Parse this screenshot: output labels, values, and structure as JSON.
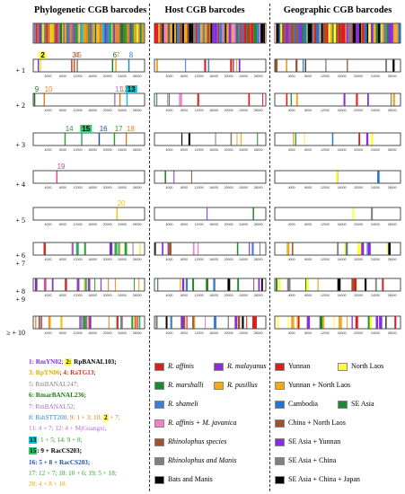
{
  "titles": [
    "Phylogenetic CGB barcodes",
    "Host CGB barcodes",
    "Geographic CGB barcodes"
  ],
  "row_labels": [
    "+ 1",
    "+ 2",
    "+ 3",
    "+ 4",
    "+ 5",
    "+ 6\n+ 7",
    "+ 8\n+ 9",
    "≥ + 10"
  ],
  "ticks": [
    "4000",
    "8000",
    "12000",
    "16000",
    "20000",
    "24000",
    "28000"
  ],
  "tick_values": [
    4000,
    8000,
    12000,
    16000,
    20000,
    24000,
    28000
  ],
  "genome_max": 30000,
  "colors": {
    "phylo": [
      "#7b2fbe",
      "#f1e52a",
      "#d4ac0d",
      "#c0392b",
      "#7f7f7f",
      "#1a7d1a",
      "#f39c12",
      "#2e86c1",
      "#8e44ad",
      "#e67e22",
      "#c0392b",
      "#a569bd",
      "#17becf",
      "#2ca02c",
      "#27ae60",
      "#1f4e9c",
      "#2ca02c",
      "#e67e22",
      "#e84393",
      "#f1c40f"
    ],
    "host": {
      "affinis": "#e31a1c",
      "malayanus": "#8a2be2",
      "marshalli": "#1a8a2e",
      "pusillus": "#f5a623",
      "shameli": "#3b7dd8",
      "javanica": "#ee82c5",
      "rhinolophus": "#a0522d",
      "rhino_manis": "#808080",
      "bats_manis": "#000000"
    },
    "geo": {
      "yunnan": "#e31a1c",
      "north_laos": "#ffff33",
      "yunnan_nl": "#f5a623",
      "cambodia": "#2176d2",
      "se_asia": "#1a8a2e",
      "china_nl": "#a0522d",
      "se_yunnan": "#8a2be2",
      "se_china": "#808080",
      "se_china_japan": "#000000"
    }
  },
  "phylo_rows": [
    [
      {
        "label": "1",
        "x": 1200,
        "c": "#7b2fbe"
      },
      {
        "label": "2",
        "x": 1800,
        "c": "#f1e52a",
        "hl": true
      },
      {
        "label": "3",
        "x": 10200,
        "c": "#c0392b"
      },
      {
        "label": "4",
        "x": 10900,
        "c": "#d35400"
      },
      {
        "label": "5",
        "x": 11700,
        "c": "#7f7f7f"
      },
      {
        "label": "6",
        "x": 21200,
        "c": "#1a7d1a"
      },
      {
        "label": "7",
        "x": 22100,
        "c": "#f39c12"
      },
      {
        "label": "8",
        "x": 25600,
        "c": "#2e86c1"
      }
    ],
    [
      {
        "label": "9",
        "x": 200,
        "c": "#1a7d1a"
      },
      {
        "label": "10",
        "x": 2800,
        "c": "#e67e22"
      },
      {
        "label": "11",
        "x": 21800,
        "c": "#b56fd6"
      },
      {
        "label": "12",
        "x": 23200,
        "c": "#e67e22"
      },
      {
        "label": "13",
        "x": 25100,
        "c": "#17becf",
        "hl": true
      }
    ],
    [
      {
        "label": "14",
        "x": 8400,
        "c": "#2ca02c"
      },
      {
        "label": "15",
        "x": 12900,
        "c": "#27ae60",
        "hl": true
      },
      {
        "label": "16",
        "x": 17600,
        "c": "#1f4e9c"
      },
      {
        "label": "17",
        "x": 21700,
        "c": "#2ca02c"
      },
      {
        "label": "18",
        "x": 24900,
        "c": "#e67e22"
      }
    ],
    [
      {
        "label": "19",
        "x": 6200,
        "c": "#e84393"
      }
    ],
    [
      {
        "label": "20",
        "x": 22400,
        "c": "#f1c40f"
      }
    ]
  ],
  "host_legend": [
    {
      "label": "R. affinis",
      "c": "#e31a1c",
      "italic": true
    },
    {
      "label": "R. malayanus",
      "c": "#8a2be2",
      "italic": true
    },
    {
      "label": "R. marshalli",
      "c": "#1a8a2e",
      "italic": true
    },
    {
      "label": "R. pusillus",
      "c": "#f5a623",
      "italic": true
    },
    {
      "label": "R. shameli",
      "c": "#3b7dd8",
      "italic": true
    },
    {
      "label": "R. affinis + M. javanica",
      "c": "#ee82c5",
      "italic": true
    },
    {
      "label": "Rhinolophus species",
      "c": "#a0522d",
      "mixed": "sp"
    },
    {
      "label": "Rhinolophus and Manis",
      "c": "#808080",
      "mixed": "manis"
    },
    {
      "label": "Bats and Manis",
      "c": "#000000"
    }
  ],
  "geo_legend": [
    {
      "label": "Yunnan",
      "c": "#e31a1c"
    },
    {
      "label": "North Laos",
      "c": "#ffff33"
    },
    {
      "label": "Yunnan + North Laos",
      "c": "#f5a623"
    },
    {
      "label": "Cambodia",
      "c": "#2176d2"
    },
    {
      "label": "SE Asia",
      "c": "#1a8a2e"
    },
    {
      "label": "China + North Laos",
      "c": "#a0522d"
    },
    {
      "label": "SE Asia + Yunnan",
      "c": "#8a2be2"
    },
    {
      "label": "SE Asia + China",
      "c": "#808080"
    },
    {
      "label": "SE Asia + China + Japan",
      "c": "#000000"
    }
  ],
  "key_lines": [
    [
      {
        "t": "1: RmYN02",
        "c": "#7b2fbe"
      },
      {
        "t": "; ",
        "c": "#000"
      },
      {
        "t": "2:",
        "c": "#000",
        "hl": "#ffff33"
      },
      {
        "t": " RpBANAL103;",
        "c": "#000"
      }
    ],
    [
      {
        "t": "3: RpYN06",
        "c": "#d4ac0d"
      },
      {
        "t": "; ",
        "c": "#000"
      },
      {
        "t": "4: RaTG13",
        "c": "#c0392b"
      },
      {
        "t": ";",
        "c": "#000"
      }
    ],
    [
      {
        "t": "5: RmBANAL247;",
        "c": "#7f7f7f"
      }
    ],
    [
      {
        "t": "6: RmarBANAL236;",
        "c": "#1a7d1a"
      }
    ],
    [
      {
        "t": "7: RmBANAL52;",
        "c": "#a569bd"
      }
    ],
    [
      {
        "t": "8: RshSTT200",
        "c": "#2e86c1"
      },
      {
        "t": "; 9: 1 + 3; 10: ",
        "c": "#c87f0a"
      },
      {
        "t": "2",
        "c": "#000",
        "hl": "#ffff33"
      },
      {
        "t": " + 7;",
        "c": "#c87f0a"
      }
    ],
    [
      {
        "t": "11: 4 + 7; 12: 4 + MjGuangxi;",
        "c": "#b56fd6"
      }
    ],
    [
      {
        "t": "13",
        "c": "#000",
        "hl": "#17becf"
      },
      {
        "t": ": 1 + 5; 14: 9 + 8;",
        "c": "#2ca02c"
      }
    ],
    [
      {
        "t": "15",
        "c": "#000",
        "hl": "#2ecc71"
      },
      {
        "t": ": 9 + RacCS203;",
        "c": "#000"
      }
    ],
    [
      {
        "t": "16: 5 + 8 + RacCS203;",
        "c": "#1f4e9c"
      }
    ],
    [
      {
        "t": "17: 12 + 7; 18: 10 + 6; 19: 5 + 18;",
        "c": "#2ca02c"
      }
    ],
    [
      {
        "t": "20: 4 + 8 + 18.",
        "c": "#f1a10f"
      }
    ]
  ]
}
